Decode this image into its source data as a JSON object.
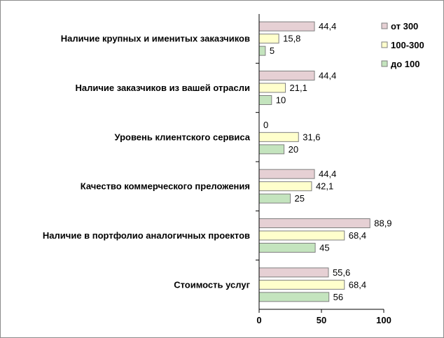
{
  "chart_data": {
    "type": "bar",
    "orientation": "horizontal",
    "categories": [
      "Наличие крупных и именитых заказчиков",
      "Наличие заказчиков из вашей отрасли",
      "Уровень клиентского сервиса",
      "Качество коммерческого преложения",
      "Наличие в портфолио аналогичных проектов",
      "Стоимость  услуг"
    ],
    "series": [
      {
        "name": "от 300",
        "color": "#e6d0d4",
        "values": [
          44.4,
          44.4,
          0,
          44.4,
          88.9,
          55.6
        ],
        "labels": [
          "44,4",
          "44,4",
          "0",
          "44,4",
          "88,9",
          "55,6"
        ]
      },
      {
        "name": "100-300",
        "color": "#ffffcc",
        "values": [
          15.8,
          21.1,
          31.6,
          42.1,
          68.4,
          68.4
        ],
        "labels": [
          "15,8",
          "21,1",
          "31,6",
          "42,1",
          "68,4",
          "68,4"
        ]
      },
      {
        "name": "до 100",
        "color": "#c4e4be",
        "values": [
          5,
          10,
          20,
          25,
          45,
          56
        ],
        "labels": [
          "5",
          "10",
          "20",
          "25",
          "45",
          "56"
        ]
      }
    ],
    "xlim": [
      0,
      100
    ],
    "xticks": [
      "0",
      "50",
      "100"
    ],
    "legend_position": "top-right",
    "grid": false
  }
}
